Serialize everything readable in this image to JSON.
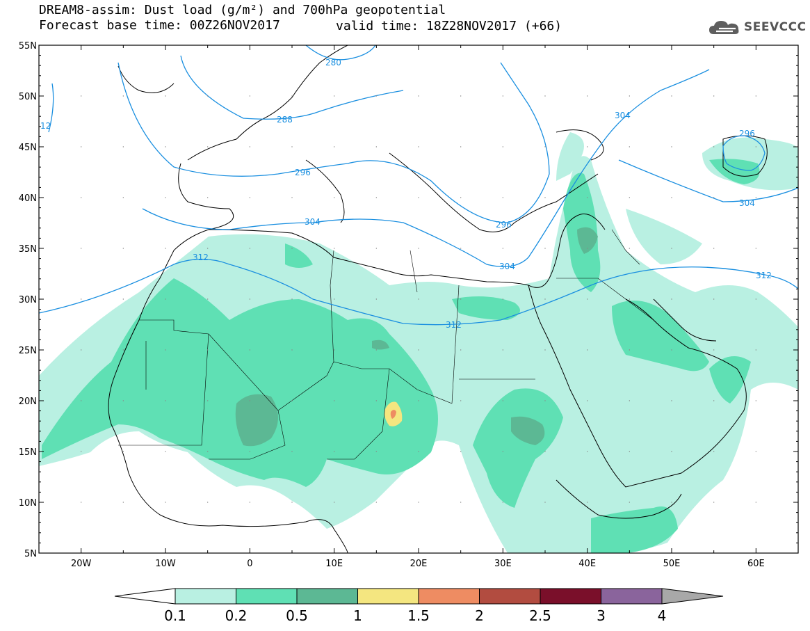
{
  "header": {
    "title": "DREAM8-assim: Dust load (g/m²) and 700hPa geopotential",
    "base_time": "Forecast base time: 00Z26NOV2017",
    "valid_time": "valid time: 18Z28NOV2017 (+66)"
  },
  "logo": {
    "text": "SEEVCCC",
    "icon": "cloud-logo-icon"
  },
  "map": {
    "lat_labels": [
      "55N",
      "50N",
      "45N",
      "40N",
      "35N",
      "30N",
      "25N",
      "20N",
      "15N",
      "10N",
      "5N"
    ],
    "lon_labels": [
      "20W",
      "10W",
      "0",
      "10E",
      "20E",
      "30E",
      "40E",
      "50E",
      "60E"
    ],
    "contour_labels": [
      "280",
      "288",
      "296",
      "304",
      "312",
      "304",
      "296",
      "304",
      "312",
      "312",
      "296",
      "304",
      "12"
    ]
  },
  "colorbar": {
    "levels": [
      "0.1",
      "0.2",
      "0.5",
      "1",
      "1.5",
      "2",
      "2.5",
      "3",
      "4"
    ],
    "colors": [
      "#b9f0e2",
      "#5fe0b4",
      "#5cb894",
      "#f4e680",
      "#ee8c62",
      "#b24c40",
      "#7a0f2a",
      "#8a649c",
      "#a8a8a8"
    ]
  }
}
